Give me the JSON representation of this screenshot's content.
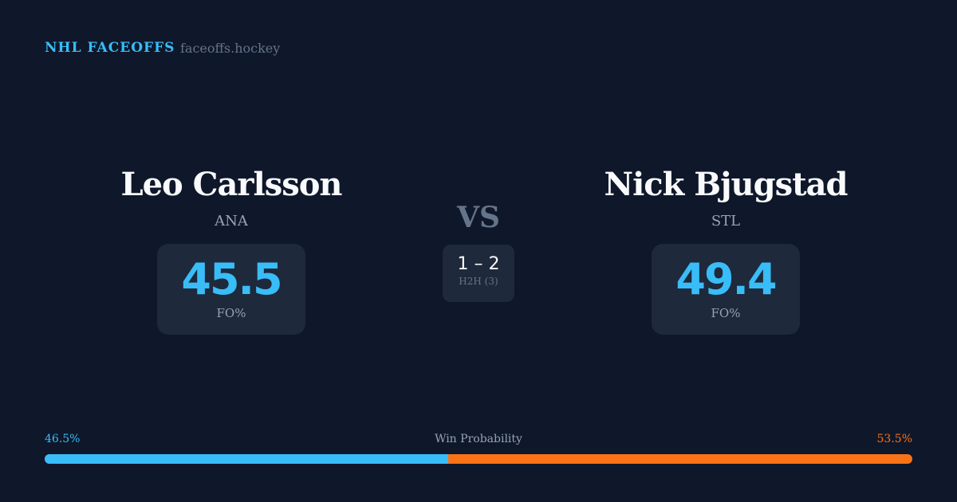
{
  "header": {
    "brand": "NHL FACEOFFS",
    "site": "faceoffs.hockey"
  },
  "left": {
    "name": "Leo Carlsson",
    "team": "ANA",
    "fo_pct": "45.5",
    "fo_label": "FO%"
  },
  "right": {
    "name": "Nick Bjugstad",
    "team": "STL",
    "fo_pct": "49.4",
    "fo_label": "FO%"
  },
  "vs": "VS",
  "h2h": {
    "score": "1 – 2",
    "label": "H2H (3)"
  },
  "win_probability": {
    "label": "Win Probability",
    "left": "46.5%",
    "right": "53.5%",
    "left_value": 46.5,
    "colors": {
      "left": "#38bdf8",
      "right": "#f97316"
    }
  }
}
